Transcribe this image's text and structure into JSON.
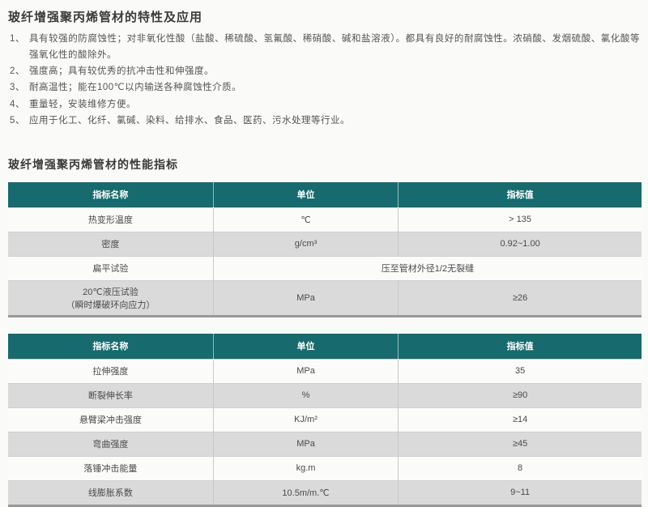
{
  "doc": {
    "title1": "玻纤增强聚丙烯管材的特性及应用",
    "title2": "玻纤增强聚丙烯管材的性能指标",
    "features": [
      {
        "num": "1、",
        "text": "具有较强的防腐蚀性；对非氧化性酸（盐酸、稀硫酸、氢氟酸、稀硝酸、碱和盐溶液）。都具有良好的耐腐蚀性。浓硝酸、发烟硫酸、氯化酸等强氧化性的酸除外。"
      },
      {
        "num": "2、",
        "text": "强度高；具有较优秀的抗冲击性和伸强度。"
      },
      {
        "num": "3、",
        "text": "耐高温性；能在100℃以内输送各种腐蚀性介质。"
      },
      {
        "num": "4、",
        "text": "重量轻，安装维修方便。"
      },
      {
        "num": "5、",
        "text": "应用于化工、化纤、氯碱、染料、给排水、食品、医药、污水处理等行业。"
      }
    ]
  },
  "colors": {
    "header_bg": "#176a6d",
    "header_text": "#ffffff",
    "alt_row_bg": "#dadada",
    "row_bg": "#fbfbfa",
    "border": "#c9c9c9",
    "bottom_border": "#989898"
  },
  "table1": {
    "columns": [
      "指标名称",
      "单位",
      "指标值"
    ],
    "rows": [
      {
        "name": "热变形温度",
        "unit": "℃",
        "value": "> 135"
      },
      {
        "name": "密度",
        "unit": "g/cm³",
        "value": "0.92~1.00"
      },
      {
        "name": "扁平试验",
        "merged": "压至管材外径1/2无裂缝"
      },
      {
        "name": "20℃液压试验",
        "name2": "（瞬时爆破环向应力）",
        "unit": "MPa",
        "value": "≥26"
      }
    ]
  },
  "table2": {
    "columns": [
      "指标名称",
      "单位",
      "指标值"
    ],
    "rows": [
      {
        "name": "拉伸强度",
        "unit": "MPa",
        "value": "35"
      },
      {
        "name": "断裂伸长率",
        "unit": "%",
        "value": "≥90"
      },
      {
        "name": "悬臂梁冲击强度",
        "unit": "KJ/m²",
        "value": "≥14"
      },
      {
        "name": "弯曲强度",
        "unit": "MPa",
        "value": "≥45"
      },
      {
        "name": "落锤冲击能量",
        "unit": "kg.m",
        "value": "8"
      },
      {
        "name": "线膨胀系数",
        "unit": "10.5m/m.℃",
        "value": "9~11"
      }
    ]
  }
}
